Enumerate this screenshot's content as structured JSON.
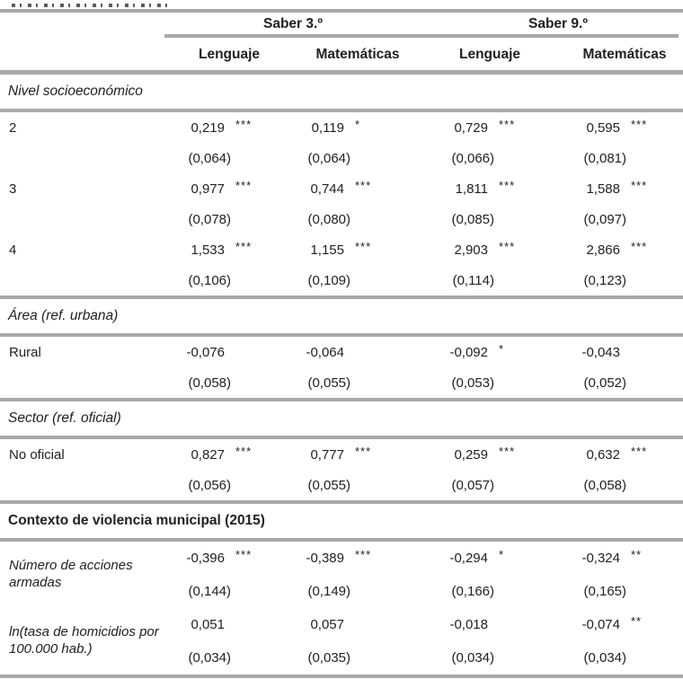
{
  "header": {
    "group_headers": [
      {
        "label": "Saber 3.º"
      },
      {
        "label": "Saber 9.º"
      }
    ],
    "column_headers": [
      "Lenguaje",
      "Matemáticas",
      "Lenguaje",
      "Matemáticas"
    ]
  },
  "table": {
    "sections": [
      {
        "title": "Nivel socioeconómico",
        "title_style": "italic",
        "rows": [
          {
            "label": "2",
            "cells": [
              {
                "value": "0,219",
                "stars": "***",
                "se": "(0,064)"
              },
              {
                "value": "0,119",
                "stars": "*",
                "se": "(0,064)"
              },
              {
                "value": "0,729",
                "stars": "***",
                "se": "(0,066)"
              },
              {
                "value": "0,595",
                "stars": "***",
                "se": "(0,081)"
              }
            ]
          },
          {
            "label": "3",
            "cells": [
              {
                "value": "0,977",
                "stars": "***",
                "se": "(0,078)"
              },
              {
                "value": "0,744",
                "stars": "***",
                "se": "(0,080)"
              },
              {
                "value": "1,811",
                "stars": "***",
                "se": "(0,085)"
              },
              {
                "value": "1,588",
                "stars": "***",
                "se": "(0,097)"
              }
            ]
          },
          {
            "label": "4",
            "cells": [
              {
                "value": "1,533",
                "stars": "***",
                "se": "(0,106)"
              },
              {
                "value": "1,155",
                "stars": "***",
                "se": "(0,109)"
              },
              {
                "value": "2,903",
                "stars": "***",
                "se": "(0,114)"
              },
              {
                "value": "2,866",
                "stars": "***",
                "se": "(0,123)"
              }
            ]
          }
        ]
      },
      {
        "title": "Área (ref. urbana)",
        "title_style": "italic",
        "rows": [
          {
            "label": "Rural",
            "cells": [
              {
                "value": "-0,076",
                "stars": "",
                "se": "(0,058)"
              },
              {
                "value": "-0,064",
                "stars": "",
                "se": "(0,055)"
              },
              {
                "value": "-0,092",
                "stars": "*",
                "se": "(0,053)"
              },
              {
                "value": "-0,043",
                "stars": "",
                "se": "(0,052)"
              }
            ]
          }
        ]
      },
      {
        "title": "Sector (ref. oficial)",
        "title_style": "italic",
        "rows": [
          {
            "label": "No oficial",
            "cells": [
              {
                "value": "0,827",
                "stars": "***",
                "se": "(0,056)"
              },
              {
                "value": "0,777",
                "stars": "***",
                "se": "(0,055)"
              },
              {
                "value": "0,259",
                "stars": "***",
                "se": "(0,057)"
              },
              {
                "value": "0,632",
                "stars": "***",
                "se": "(0,058)"
              }
            ]
          }
        ]
      },
      {
        "title": "Contexto de violencia municipal (2015)",
        "title_style": "bold",
        "rows": [
          {
            "label": "Número de acciones armadas",
            "cells": [
              {
                "value": "-0,396",
                "stars": "***",
                "se": "(0,144)"
              },
              {
                "value": "-0,389",
                "stars": "***",
                "se": "(0,149)"
              },
              {
                "value": "-0,294",
                "stars": "*",
                "se": "(0,166)"
              },
              {
                "value": "-0,324",
                "stars": "**",
                "se": "(0,165)"
              }
            ]
          },
          {
            "label": "ln(tasa de homicidios por 100.000 hab.)",
            "cells": [
              {
                "value": "0,051",
                "stars": "",
                "se": "(0,034)"
              },
              {
                "value": "0,057",
                "stars": "",
                "se": "(0,035)"
              },
              {
                "value": "-0,018",
                "stars": "",
                "se": "(0,034)"
              },
              {
                "value": "-0,074",
                "stars": "**",
                "se": "(0,034)"
              }
            ]
          }
        ]
      }
    ]
  },
  "colors": {
    "rule_gray": "#a9a9a9",
    "text": "#212121"
  }
}
